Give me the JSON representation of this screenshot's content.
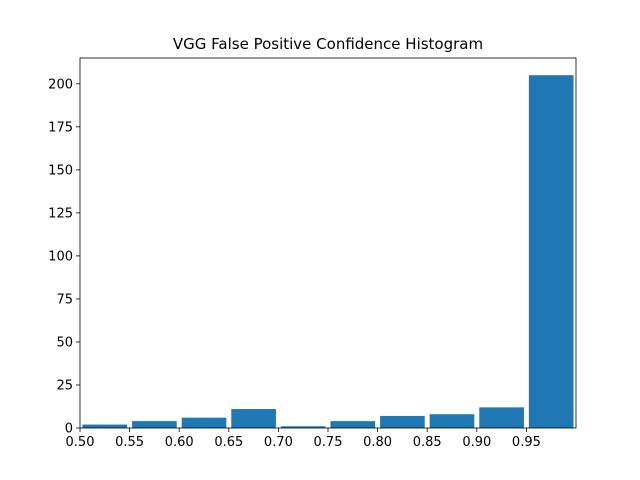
{
  "chart_data": {
    "type": "bar",
    "title": "VGG False Positive Confidence Histogram",
    "xlabel": "",
    "ylabel": "",
    "bin_edges": [
      0.5,
      0.55,
      0.6,
      0.65,
      0.7,
      0.75,
      0.8,
      0.85,
      0.9,
      0.95,
      1.0
    ],
    "values": [
      2,
      4,
      6,
      11,
      1,
      4,
      7,
      8,
      12,
      205
    ],
    "bar_width_fraction": 0.9,
    "xlim": [
      0.5,
      1.0
    ],
    "ylim": [
      0,
      215
    ],
    "x_ticks": [
      "0.50",
      "0.55",
      "0.60",
      "0.65",
      "0.70",
      "0.75",
      "0.80",
      "0.85",
      "0.90",
      "0.95"
    ],
    "y_ticks": [
      "0",
      "25",
      "50",
      "75",
      "100",
      "125",
      "150",
      "175",
      "200"
    ],
    "bar_color": "#1f77b4",
    "grid": false
  }
}
